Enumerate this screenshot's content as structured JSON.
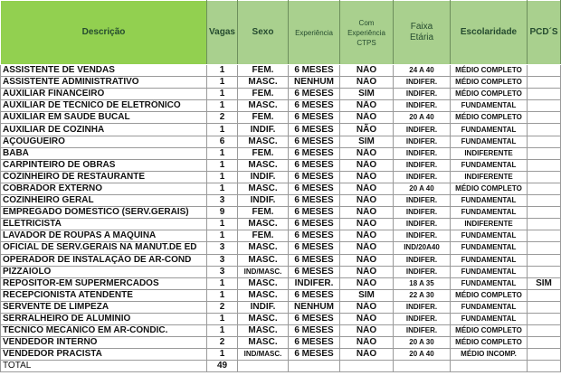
{
  "headers": {
    "descricao": "Descrição",
    "vagas": "Vagas",
    "sexo": "Sexo",
    "experiencia": "Experiência",
    "ctps": "Com Experiência CTPS",
    "faixa": "Faixa Etária",
    "escolaridade": "Escolaridade",
    "pcd": "PCD´S"
  },
  "rows": [
    [
      "ASSISTENTE DE VENDAS",
      "1",
      "FEM.",
      "6 MESES",
      "NÃO",
      "24 A 40",
      "MÉDIO COMPLETO",
      ""
    ],
    [
      "ASSISTENTE ADMINISTRATIVO",
      "1",
      "MASC.",
      "NENHUM",
      "NÃO",
      "INDIFER.",
      "MÉDIO COMPLETO",
      ""
    ],
    [
      "AUXILIAR FINANCEIRO",
      "1",
      "FEM.",
      "6 MESES",
      "SIM",
      "INDIFER.",
      "MÉDIO COMPLETO",
      ""
    ],
    [
      "AUXILIAR DE TÉCNICO DE ELETRÔNICO",
      "1",
      "MASC.",
      "6 MESES",
      "NÃO",
      "INDIFER.",
      "FUNDAMENTAL",
      ""
    ],
    [
      "AUXILIAR EM SAÚDE BUCAL",
      "2",
      "FEM.",
      "6 MESES",
      "NÃO",
      "20 A 40",
      "MÉDIO COMPLETO",
      ""
    ],
    [
      "AUXILIAR DE COZINHA",
      "1",
      "INDIF.",
      "6 MESES",
      "NÃO",
      "INDIFER.",
      "FUNDAMENTAL",
      ""
    ],
    [
      "AÇOUGUEIRO",
      "6",
      "MASC.",
      "6 MESES",
      "SIM",
      "INDIFER.",
      "FUNDAMENTAL",
      ""
    ],
    [
      "BABÁ",
      "1",
      "FEM.",
      "6 MESES",
      "NÃO",
      "INDIFER.",
      "INDIFERENTE",
      ""
    ],
    [
      "CARPINTEIRO DE OBRAS",
      "1",
      "MASC.",
      "6 MESES",
      "NÃO",
      "INDIFER.",
      "FUNDAMENTAL",
      ""
    ],
    [
      "COZINHEIRO DE RESTAURANTE",
      "1",
      "INDIF.",
      "6 MESES",
      "NÃO",
      "INDIFER.",
      "INDIFERENTE",
      ""
    ],
    [
      "COBRADOR EXTERNO",
      "1",
      "MASC.",
      "6 MESES",
      "NÃO",
      "20 A 40",
      "MÉDIO COMPLETO",
      ""
    ],
    [
      "COZINHEIRO GERAL",
      "3",
      "INDIF.",
      "6 MESES",
      "NÃO",
      "INDIFER.",
      "FUNDAMENTAL",
      ""
    ],
    [
      "EMPREGADO DOMÉSTICO (SERV.GERAIS)",
      "9",
      "FEM.",
      "6 MESES",
      "NÃO",
      "INDIFER.",
      "FUNDAMENTAL",
      ""
    ],
    [
      "ELETRICISTA",
      "1",
      "MASC.",
      "6 MESES",
      "NÃO",
      "INDIFER.",
      "INDIFERENTE",
      ""
    ],
    [
      "LAVADOR DE ROUPAS A MAQUINA",
      "1",
      "FEM.",
      "6 MESES",
      "NÃO",
      "INDIFER.",
      "FUNDAMENTAL",
      ""
    ],
    [
      "OFICIAL DE SERV.GERAIS NA MANUT.DE ED",
      "3",
      "MASC.",
      "6 MESES",
      "NÃO",
      "IND/20A40",
      "FUNDAMENTAL",
      ""
    ],
    [
      "OPERADOR DE INSTALAÇÃO DE AR-COND",
      "3",
      "MASC.",
      "6 MESES",
      "NÃO",
      "INDIFER.",
      "FUNDAMENTAL",
      ""
    ],
    [
      "PIZZAIOLO",
      "3",
      "IND/MASC.",
      "6 MESES",
      "NÃO",
      "INDIFER.",
      "FUNDAMENTAL",
      ""
    ],
    [
      "REPOSITOR-EM SUPERMERCADOS",
      "1",
      "MASC.",
      "INDIFER.",
      "NÃO",
      "18 A 35",
      "FUNDAMENTAL",
      "SIM"
    ],
    [
      "RECEPCIONISTA ATENDENTE",
      "1",
      "MASC.",
      "6 MESES",
      "SIM",
      "22 A 30",
      "MÉDIO COMPLETO",
      ""
    ],
    [
      "SERVENTE DE LIMPEZA",
      "2",
      "INDIF.",
      "NENHUM",
      "NÃO",
      "INDIFER.",
      "FUNDAMENTAL",
      ""
    ],
    [
      "SERRALHEIRO DE ALUMINIO",
      "1",
      "MASC.",
      "6 MESES",
      "NÃO",
      "INDIFER.",
      "FUNDAMENTAL",
      ""
    ],
    [
      "TÉCNICO MECANICO EM AR-CONDIC.",
      "1",
      "MASC.",
      "6 MESES",
      "NÃO",
      "INDIFER.",
      "MÉDIO COMPLETO",
      ""
    ],
    [
      "VENDEDOR INTERNO",
      "2",
      "MASC.",
      "6 MESES",
      "NÃO",
      "20 A 30",
      "MÉDIO COMPLETO",
      ""
    ],
    [
      "VENDEDOR PRACISTA",
      "1",
      "IND/MASC.",
      "6 MESES",
      "NÃO",
      "20 A 40",
      "MÉDIO INCOMP.",
      ""
    ]
  ],
  "total": {
    "label": "TOTAL",
    "value": "49"
  }
}
